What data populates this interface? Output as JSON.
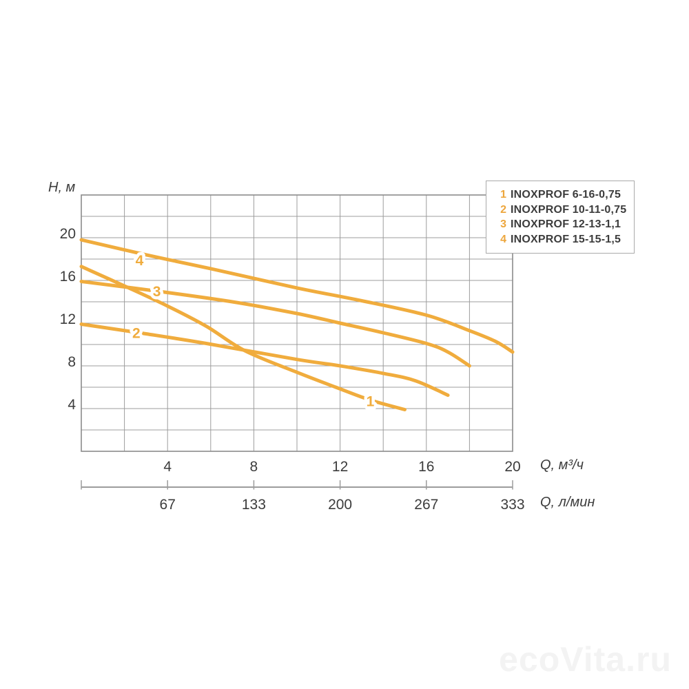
{
  "axes": {
    "y_label": "H, м",
    "x_primary_unit": "Q, м³/ч",
    "x_secondary_unit": "Q, л/мин"
  },
  "legend": {
    "items": [
      {
        "num": "1",
        "name": "INOXPROF 6-16-0,75"
      },
      {
        "num": "2",
        "name": "INOXPROF 10-11-0,75"
      },
      {
        "num": "3",
        "name": "INOXPROF 12-13-1,1"
      },
      {
        "num": "4",
        "name": "INOXPROF 15-15-1,5"
      }
    ]
  },
  "watermark": "ecoVita.ru",
  "colors": {
    "curve": "#F0AC3D",
    "grid": "#9C9C9C",
    "border": "#8A8A8A",
    "text": "#3C3C3C",
    "watermark": "#F3F3F3"
  },
  "chart_data": {
    "type": "line",
    "title": "",
    "xlabel": "Q, м³/ч",
    "xlabel_secondary": "Q, л/мин",
    "ylabel": "H, м",
    "xlim": [
      0,
      20
    ],
    "ylim": [
      0,
      24
    ],
    "grid": true,
    "grid_step": 2,
    "x_ticks": [
      4,
      8,
      12,
      16,
      20
    ],
    "x_ticks_secondary": [
      67,
      133,
      200,
      267,
      333
    ],
    "y_ticks": [
      4,
      8,
      12,
      16,
      20
    ],
    "legend_position": "top-right",
    "series": [
      {
        "id": "1",
        "name": "INOXPROF 6-16-0,75",
        "label_pos": [
          13.4,
          4.7
        ],
        "points": [
          [
            0,
            17.3
          ],
          [
            2.2,
            15.3
          ],
          [
            4,
            13.6
          ],
          [
            5.8,
            11.7
          ],
          [
            7.6,
            9.4
          ],
          [
            10,
            7.4
          ],
          [
            11.8,
            6.0
          ],
          [
            13.4,
            4.8
          ],
          [
            15,
            3.9
          ]
        ]
      },
      {
        "id": "2",
        "name": "INOXPROF 10-11-0,75",
        "label_pos": [
          2.55,
          11.1
        ],
        "points": [
          [
            0,
            11.9
          ],
          [
            3,
            11.0
          ],
          [
            5.8,
            10.1
          ],
          [
            10,
            8.6
          ],
          [
            12,
            8.0
          ],
          [
            14,
            7.3
          ],
          [
            15.5,
            6.6
          ],
          [
            17,
            5.25
          ]
        ]
      },
      {
        "id": "3",
        "name": "INOXPROF 12-13-1,1",
        "label_pos": [
          3.5,
          15.0
        ],
        "points": [
          [
            0,
            15.9
          ],
          [
            3.5,
            15.0
          ],
          [
            7,
            14.0
          ],
          [
            10,
            12.9
          ],
          [
            12,
            12.0
          ],
          [
            14,
            11.1
          ],
          [
            16,
            10.1
          ],
          [
            17,
            9.3
          ],
          [
            18,
            8.0
          ]
        ]
      },
      {
        "id": "4",
        "name": "INOXPROF 15-15-1,5",
        "label_pos": [
          2.7,
          17.9
        ],
        "points": [
          [
            0,
            19.8
          ],
          [
            3,
            18.4
          ],
          [
            6,
            17.1
          ],
          [
            10,
            15.3
          ],
          [
            13,
            14.1
          ],
          [
            16,
            12.75
          ],
          [
            18,
            11.3
          ],
          [
            19.2,
            10.3
          ],
          [
            20,
            9.3
          ]
        ]
      }
    ]
  }
}
